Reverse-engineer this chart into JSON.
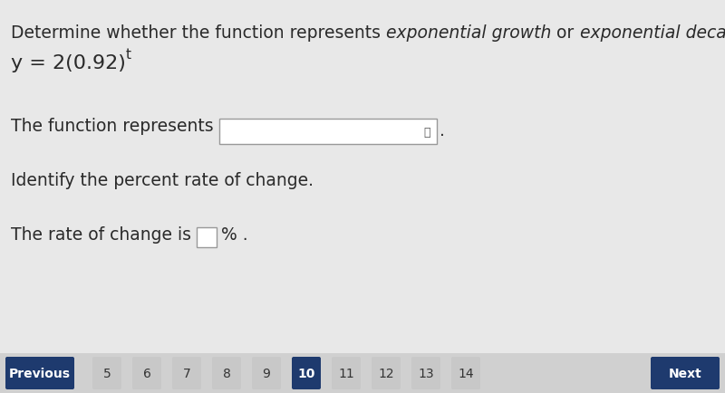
{
  "background_color": "#dcdcdc",
  "title_part1": "Determine whether the function represents ",
  "title_italic1": "exponential growth",
  "title_mid": " or ",
  "title_italic2": "exponential decay",
  "title_end": ".",
  "formula_main": "y = 2(0.92)",
  "formula_sup": "t",
  "line1_text": "The function represents",
  "line2_text": "Identify the percent rate of change.",
  "line3_prefix": "The rate of change is",
  "line3_suffix": "% .",
  "nav_labels": [
    "Previous",
    "5",
    "6",
    "7",
    "8",
    "9",
    "10",
    "11",
    "12",
    "13",
    "14",
    "Next"
  ],
  "active_page": "10",
  "text_color": "#2a2a2a",
  "nav_text_color": "#333333",
  "btn_dark_color": "#1e3a6e",
  "btn_light_color": "#c8c8c8",
  "font_size_main": 13.5,
  "font_size_formula": 16,
  "font_size_nav": 10.5,
  "content_bg": "#e8e8e8"
}
